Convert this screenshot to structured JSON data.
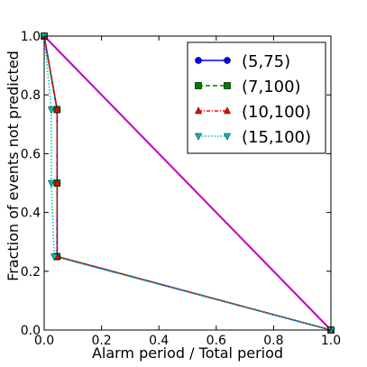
{
  "chart_data": {
    "type": "line",
    "title": "",
    "xlabel": "Alarm period / Total period",
    "ylabel": "Fraction of events not predicted",
    "xlim": [
      0.0,
      1.0
    ],
    "ylim": [
      0.0,
      1.0
    ],
    "xticks": [
      0.0,
      0.2,
      0.4,
      0.6,
      0.8,
      1.0
    ],
    "yticks": [
      0.0,
      0.2,
      0.4,
      0.6,
      0.8,
      1.0
    ],
    "xtick_labels": [
      "0.0",
      "0.2",
      "0.4",
      "0.6",
      "0.8",
      "1.0"
    ],
    "ytick_labels": [
      "0.0",
      "0.2",
      "0.4",
      "0.6",
      "0.8",
      "1.0"
    ],
    "grid": false,
    "legend_position": "top-right",
    "reference_line": {
      "x": [
        0.0,
        1.0
      ],
      "y": [
        1.0,
        0.0
      ],
      "color": "#bf00bf"
    },
    "series": [
      {
        "name": "(5,75)",
        "color": "#0000ff",
        "marker": "circle",
        "linestyle": "solid",
        "x": [
          0.0,
          0.045,
          0.045,
          0.045,
          1.0
        ],
        "y": [
          1.0,
          0.75,
          0.5,
          0.25,
          0.0
        ]
      },
      {
        "name": "(7,100)",
        "color": "#007f00",
        "marker": "square",
        "linestyle": "dashed",
        "x": [
          0.0,
          0.045,
          0.045,
          0.045,
          1.0
        ],
        "y": [
          1.0,
          0.75,
          0.5,
          0.25,
          0.0
        ]
      },
      {
        "name": "(10,100)",
        "color": "#ff0000",
        "marker": "triangle-up",
        "linestyle": "dashdot",
        "x": [
          0.0,
          0.045,
          0.045,
          0.045,
          1.0
        ],
        "y": [
          1.0,
          0.75,
          0.5,
          0.25,
          0.0
        ]
      },
      {
        "name": "(15,100)",
        "color": "#00bfbf",
        "marker": "triangle-down",
        "linestyle": "dotted",
        "x": [
          0.0,
          0.025,
          0.025,
          0.035,
          1.0
        ],
        "y": [
          1.0,
          0.75,
          0.5,
          0.25,
          0.0
        ]
      }
    ]
  }
}
